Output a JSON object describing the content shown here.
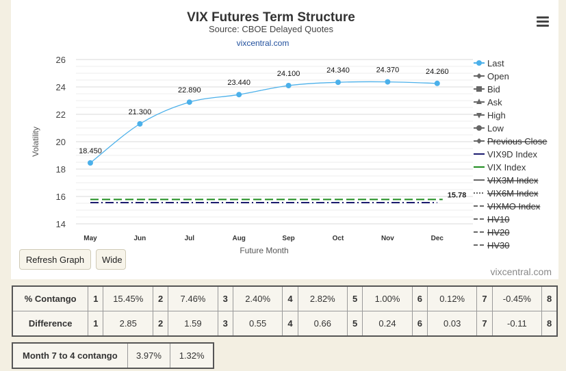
{
  "chart_data": {
    "type": "line",
    "title": "VIX Futures Term Structure",
    "subtitle": "Source: CBOE Delayed Quotes",
    "link": "vixcentral.com",
    "xlabel": "Future Month",
    "ylabel": "Volatility",
    "categories": [
      "May",
      "Jun",
      "Jul",
      "Aug",
      "Sep",
      "Oct",
      "Nov",
      "Dec"
    ],
    "ylim": [
      14,
      26
    ],
    "yticks": [
      "14",
      "16",
      "18",
      "20",
      "22",
      "24",
      "26"
    ],
    "series": [
      {
        "name": "Last",
        "values": [
          18.45,
          21.3,
          22.89,
          23.44,
          24.1,
          24.34,
          24.37,
          24.26
        ],
        "labels": [
          "18.450",
          "21.300",
          "22.890",
          "23.440",
          "24.100",
          "24.340",
          "24.370",
          "24.260"
        ],
        "color": "#4bb0ea"
      },
      {
        "name": "VIX9D Index",
        "value": 15.55,
        "color": "#1a1a6e"
      },
      {
        "name": "VIX Index",
        "value": 15.78,
        "label": "15.78",
        "color": "#1e8c1e"
      }
    ],
    "legend": {
      "position": "right",
      "items": [
        {
          "name": "Last",
          "hidden": false,
          "icon": "dot-line",
          "color": "#4bb0ea"
        },
        {
          "name": "Open",
          "hidden": false,
          "icon": "diamond-line",
          "color": "#666666"
        },
        {
          "name": "Bid",
          "hidden": false,
          "icon": "square-line",
          "color": "#666666"
        },
        {
          "name": "Ask",
          "hidden": false,
          "icon": "triangle-line",
          "color": "#666666"
        },
        {
          "name": "High",
          "hidden": false,
          "icon": "triangle-down-line",
          "color": "#666666"
        },
        {
          "name": "Low",
          "hidden": false,
          "icon": "dot-line",
          "color": "#666666"
        },
        {
          "name": "Previous Close",
          "hidden": true,
          "icon": "diamond-line",
          "color": "#666666"
        },
        {
          "name": "VIX9D Index",
          "hidden": false,
          "icon": "solid-line",
          "color": "#1a1a6e"
        },
        {
          "name": "VIX Index",
          "hidden": false,
          "icon": "solid-line",
          "color": "#1e8c1e"
        },
        {
          "name": "VIX3M Index",
          "hidden": true,
          "icon": "solid-line",
          "color": "#666666"
        },
        {
          "name": "VIX6M Index",
          "hidden": true,
          "icon": "dotted-line",
          "color": "#666666"
        },
        {
          "name": "VIXMO Index",
          "hidden": true,
          "icon": "dash-line",
          "color": "#666666"
        },
        {
          "name": "HV10",
          "hidden": true,
          "icon": "dash-line",
          "color": "#666666"
        },
        {
          "name": "HV20",
          "hidden": true,
          "icon": "dash-line",
          "color": "#666666"
        },
        {
          "name": "HV30",
          "hidden": true,
          "icon": "dash-line",
          "color": "#666666"
        }
      ]
    },
    "grid": true
  },
  "credit": "vixcentral.com",
  "buttons": {
    "refresh": "Refresh Graph",
    "wide": "Wide"
  },
  "contango_table": {
    "rows": [
      {
        "label": "% Contango",
        "cells": [
          [
            "1",
            "15.45%"
          ],
          [
            "2",
            "7.46%"
          ],
          [
            "3",
            "2.40%"
          ],
          [
            "4",
            "2.82%"
          ],
          [
            "5",
            "1.00%"
          ],
          [
            "6",
            "0.12%"
          ],
          [
            "7",
            "-0.45%"
          ],
          [
            "8",
            ""
          ]
        ]
      },
      {
        "label": "Difference",
        "cells": [
          [
            "1",
            "2.85"
          ],
          [
            "2",
            "1.59"
          ],
          [
            "3",
            "0.55"
          ],
          [
            "4",
            "0.66"
          ],
          [
            "5",
            "0.24"
          ],
          [
            "6",
            "0.03"
          ],
          [
            "7",
            "-0.11"
          ],
          [
            "8",
            ""
          ]
        ]
      }
    ]
  },
  "month_table": {
    "label": "Month 7 to 4 contango",
    "values": [
      "3.97%",
      "1.32%"
    ]
  }
}
